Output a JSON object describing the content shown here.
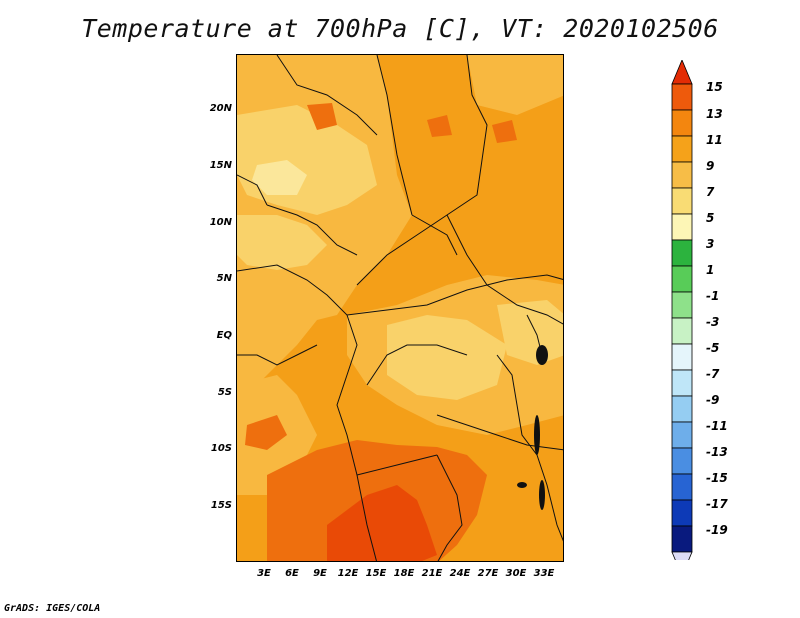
{
  "title": "Temperature at 700hPa [C], VT: 2020102506",
  "credit": "GrADS: IGES/COLA",
  "map": {
    "latitude_ticks": [
      "20N",
      "15N",
      "10N",
      "5N",
      "EQ",
      "5S",
      "10S",
      "15S"
    ],
    "longitude_ticks": [
      "3E",
      "6E",
      "9E",
      "12E",
      "15E",
      "18E",
      "21E",
      "24E",
      "27E",
      "30E",
      "33E"
    ],
    "colors": {
      "c5_7": "#f9d26a",
      "c7_9": "#f8b840",
      "c9_11": "#f49f18",
      "c11_13": "#ee6f0e",
      "c13_15": "#e94a06",
      "c3_5": "#fbe79b"
    }
  },
  "colorbar": {
    "labels": [
      "15",
      "13",
      "11",
      "9",
      "7",
      "5",
      "3",
      "1",
      "-1",
      "-3",
      "-5",
      "-7",
      "-9",
      "-11",
      "-13",
      "-15",
      "-17",
      "-19"
    ],
    "colors": [
      "#e32c05",
      "#ee5a0c",
      "#f3860f",
      "#f5a21a",
      "#f7bd47",
      "#f9dc74",
      "#fdf6b6",
      "#2cb33e",
      "#58cc58",
      "#8ee18a",
      "#c8f2c5",
      "#e5f5fb",
      "#bfe6f8",
      "#95cdf2",
      "#6eaeea",
      "#4a8ee2",
      "#2764d3",
      "#0d3ab7",
      "#091a7e",
      "#dcdcf6"
    ]
  }
}
